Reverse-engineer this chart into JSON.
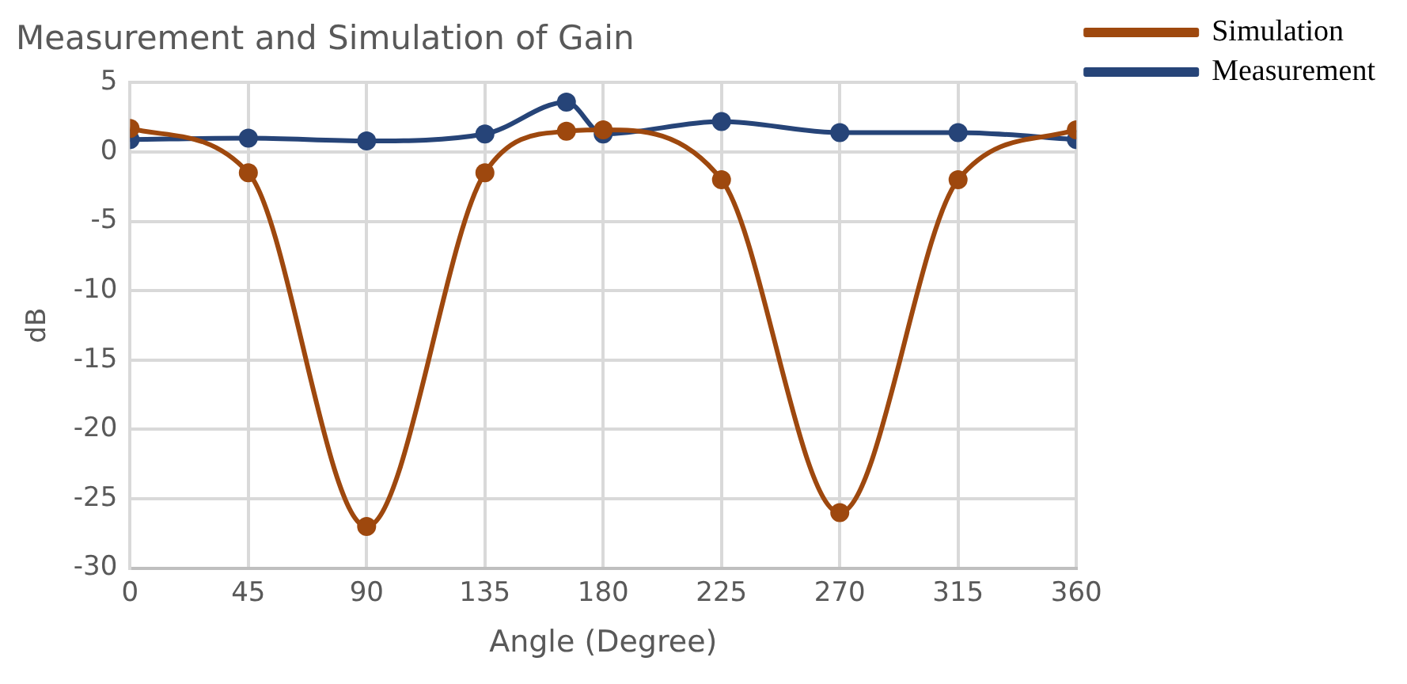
{
  "chart_data": {
    "type": "line",
    "title": "Measurement and Simulation of Gain",
    "xlabel": "Angle (Degree)",
    "ylabel": "dB",
    "xlim": [
      0,
      360
    ],
    "xticks": [
      0,
      45,
      90,
      135,
      180,
      225,
      270,
      315,
      360
    ],
    "ylim": [
      -30,
      5
    ],
    "yticks": [
      -30,
      -25,
      -20,
      -15,
      -10,
      -5,
      0,
      5
    ],
    "grid": true,
    "legend": "top right",
    "marker": "circle",
    "line_style": "solid",
    "series": [
      {
        "name": "Measurement",
        "color": "#264478",
        "x": [
          0,
          45,
          90,
          135,
          166,
          180,
          225,
          270,
          315,
          360
        ],
        "values": [
          0.9,
          1.0,
          0.8,
          1.3,
          3.6,
          1.3,
          2.2,
          1.4,
          1.4,
          0.9
        ]
      },
      {
        "name": "Simulation",
        "color": "#9e480e",
        "x": [
          0,
          45,
          90,
          135,
          166,
          180,
          225,
          270,
          315,
          360
        ],
        "values": [
          1.7,
          -1.5,
          -27,
          -1.5,
          1.5,
          1.6,
          -2,
          -26,
          -2,
          1.6
        ]
      }
    ]
  }
}
